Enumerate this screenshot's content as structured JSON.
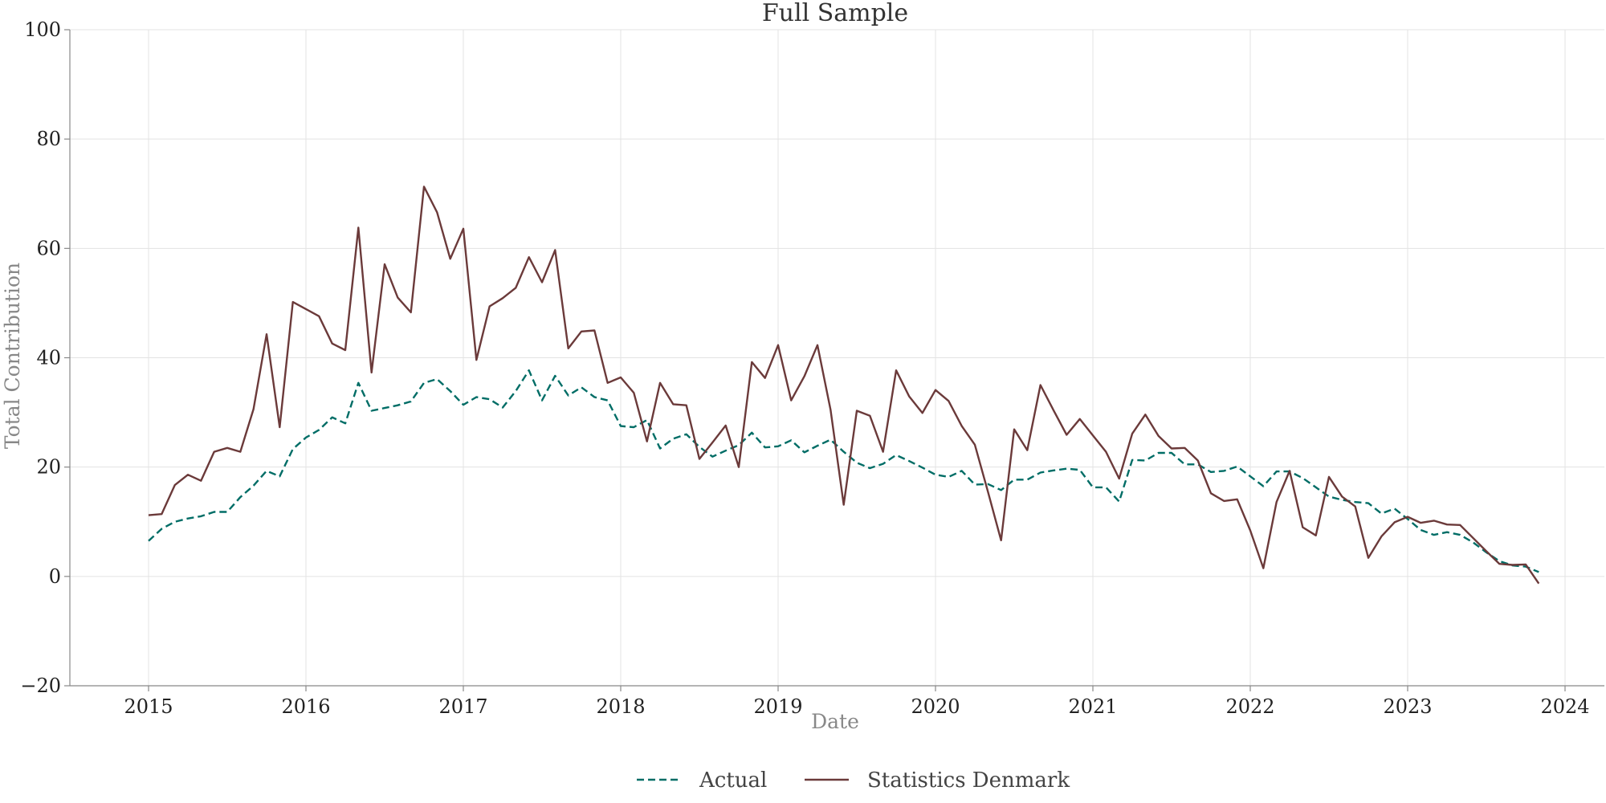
{
  "chart_data": {
    "type": "line",
    "title": "Full Sample",
    "xlabel": "Date",
    "ylabel": "Total Contribution",
    "xlim": [
      "2014-07-01",
      "2024-04-01"
    ],
    "ylim": [
      -20,
      100
    ],
    "x_ticks": [
      "2015",
      "2016",
      "2017",
      "2018",
      "2019",
      "2020",
      "2021",
      "2022",
      "2023",
      "2024"
    ],
    "y_ticks": [
      -20,
      0,
      20,
      40,
      60,
      80,
      100
    ],
    "y_tick_labels": [
      "−20",
      "0",
      "20",
      "40",
      "60",
      "80",
      "100"
    ],
    "grid": true,
    "legend_position": "bottom-center",
    "x": [
      "2015-01",
      "2015-02",
      "2015-03",
      "2015-04",
      "2015-05",
      "2015-06",
      "2015-07",
      "2015-08",
      "2015-09",
      "2015-10",
      "2015-11",
      "2015-12",
      "2016-01",
      "2016-02",
      "2016-03",
      "2016-04",
      "2016-05",
      "2016-06",
      "2016-07",
      "2016-08",
      "2016-09",
      "2016-10",
      "2016-11",
      "2016-12",
      "2017-01",
      "2017-02",
      "2017-03",
      "2017-04",
      "2017-05",
      "2017-06",
      "2017-07",
      "2017-08",
      "2017-09",
      "2017-10",
      "2017-11",
      "2017-12",
      "2018-01",
      "2018-02",
      "2018-03",
      "2018-04",
      "2018-05",
      "2018-06",
      "2018-07",
      "2018-08",
      "2018-09",
      "2018-10",
      "2018-11",
      "2018-12",
      "2019-01",
      "2019-02",
      "2019-03",
      "2019-04",
      "2019-05",
      "2019-06",
      "2019-07",
      "2019-08",
      "2019-09",
      "2019-10",
      "2019-11",
      "2019-12",
      "2020-01",
      "2020-02",
      "2020-03",
      "2020-04",
      "2020-05",
      "2020-06",
      "2020-07",
      "2020-08",
      "2020-09",
      "2020-10",
      "2020-11",
      "2020-12",
      "2021-01",
      "2021-02",
      "2021-03",
      "2021-04",
      "2021-05",
      "2021-06",
      "2021-07",
      "2021-08",
      "2021-09",
      "2021-10",
      "2021-11",
      "2021-12",
      "2022-01",
      "2022-02",
      "2022-03",
      "2022-04",
      "2022-05",
      "2022-06",
      "2022-07",
      "2022-08",
      "2022-09",
      "2022-10",
      "2022-11",
      "2022-12",
      "2023-01",
      "2023-02",
      "2023-03",
      "2023-04",
      "2023-05",
      "2023-06",
      "2023-07",
      "2023-08",
      "2023-09",
      "2023-10",
      "2023-11"
    ],
    "series": [
      {
        "name": "Actual",
        "color": "#006d66",
        "style": "dashed",
        "values": [
          6.5,
          8.7,
          10.0,
          10.6,
          11.0,
          11.8,
          11.8,
          14.5,
          16.6,
          19.3,
          18.3,
          23.3,
          25.4,
          26.8,
          29.1,
          28.0,
          35.4,
          30.3,
          30.8,
          31.3,
          32.0,
          35.4,
          36.1,
          33.9,
          31.4,
          32.8,
          32.4,
          30.9,
          33.9,
          37.7,
          32.2,
          36.7,
          33.1,
          34.6,
          32.8,
          32.2,
          27.5,
          27.3,
          28.6,
          23.4,
          25.2,
          26.0,
          23.7,
          21.9,
          23.0,
          24.0,
          26.3,
          23.6,
          23.8,
          24.9,
          22.7,
          23.9,
          25.0,
          22.8,
          20.8,
          19.8,
          20.6,
          22.2,
          21.1,
          19.9,
          18.6,
          18.2,
          19.3,
          16.8,
          16.9,
          15.8,
          17.7,
          17.7,
          19.0,
          19.4,
          19.7,
          19.5,
          16.3,
          16.3,
          13.7,
          21.3,
          21.2,
          22.6,
          22.6,
          20.5,
          20.5,
          19.1,
          19.3,
          20.1,
          18.3,
          16.5,
          19.2,
          19.2,
          18.0,
          16.3,
          14.6,
          14.0,
          13.6,
          13.4,
          11.5,
          12.4,
          10.5,
          8.5,
          7.6,
          8.1,
          7.6,
          6.2,
          4.4,
          2.8,
          2.0,
          1.8,
          0.8
        ]
      },
      {
        "name": "Statistics Denmark",
        "color": "#6b3a3a",
        "style": "solid",
        "values": [
          11.2,
          11.4,
          16.7,
          18.6,
          17.5,
          22.8,
          23.5,
          22.8,
          30.6,
          44.3,
          27.3,
          50.2,
          48.9,
          47.6,
          42.6,
          41.4,
          63.8,
          37.3,
          57.1,
          51.0,
          48.3,
          71.3,
          66.6,
          58.1,
          63.6,
          39.6,
          49.4,
          50.9,
          52.8,
          58.4,
          53.8,
          59.7,
          41.7,
          44.8,
          45.0,
          35.4,
          36.4,
          33.6,
          24.7,
          35.4,
          31.5,
          31.3,
          21.5,
          24.5,
          27.6,
          20.0,
          39.2,
          36.3,
          42.3,
          32.2,
          36.6,
          42.3,
          30.5,
          13.1,
          30.3,
          29.4,
          22.8,
          37.7,
          32.9,
          29.9,
          34.1,
          32.1,
          27.5,
          24.1,
          15.5,
          6.6,
          26.9,
          23.1,
          35.0,
          30.4,
          25.9,
          28.8,
          25.8,
          22.8,
          17.9,
          26.1,
          29.6,
          25.7,
          23.4,
          23.5,
          21.2,
          15.2,
          13.8,
          14.1,
          8.4,
          1.5,
          13.6,
          19.3,
          9.0,
          7.5,
          18.2,
          14.6,
          12.8,
          3.4,
          7.3,
          9.9,
          10.9,
          9.8,
          10.2,
          9.5,
          9.4,
          7.0,
          4.6,
          2.3,
          2.1,
          2.2,
          -1.3
        ]
      }
    ]
  }
}
